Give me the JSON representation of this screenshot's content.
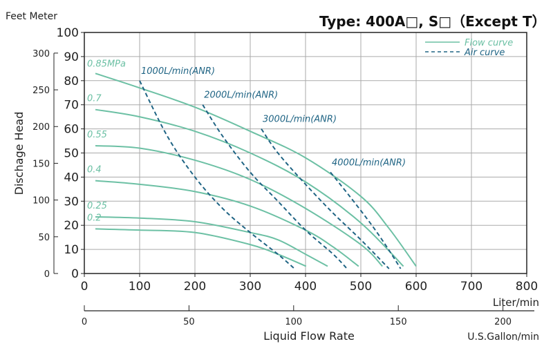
{
  "chart_data": {
    "type": "line",
    "title": "Type: 400A□, S□（Except T）",
    "units_left": "Feet Meter",
    "ylabel": "Dischage Head",
    "xlabel": "Liquid Flow Rate",
    "x_unit": "Liter/min",
    "x2_unit": "U.S.Gallon/min",
    "xlim": [
      0,
      800
    ],
    "ylim": [
      0,
      100
    ],
    "xticks": [
      "0",
      "100",
      "200",
      "300",
      "400",
      "500",
      "600",
      "700",
      "800"
    ],
    "yticks": [
      "0",
      "10",
      "20",
      "30",
      "40",
      "50",
      "60",
      "70",
      "80",
      "90",
      "100"
    ],
    "feet_ticks": [
      "0",
      "50",
      "100",
      "150",
      "200",
      "250",
      "300"
    ],
    "gallon_ticks": [
      "0",
      "50",
      "100",
      "150",
      "200"
    ],
    "grid": true,
    "legend": {
      "position": "top-right",
      "flow": "Flow curve",
      "air": "Air curve"
    },
    "colors": {
      "flow": "#6cc0a4",
      "air": "#1f6484"
    },
    "flow_series": [
      {
        "name": "0.85MPa",
        "points": [
          [
            20,
            83
          ],
          [
            100,
            77
          ],
          [
            200,
            69
          ],
          [
            300,
            59
          ],
          [
            400,
            48
          ],
          [
            500,
            32
          ],
          [
            550,
            19
          ],
          [
            600,
            3
          ]
        ]
      },
      {
        "name": "0.7",
        "points": [
          [
            20,
            68
          ],
          [
            100,
            65
          ],
          [
            200,
            59
          ],
          [
            300,
            50
          ],
          [
            400,
            38
          ],
          [
            500,
            21
          ],
          [
            577,
            3
          ]
        ]
      },
      {
        "name": "0.55",
        "points": [
          [
            20,
            53
          ],
          [
            100,
            52
          ],
          [
            200,
            47
          ],
          [
            300,
            39
          ],
          [
            400,
            27
          ],
          [
            500,
            12
          ],
          [
            539,
            3
          ]
        ]
      },
      {
        "name": "0.4",
        "points": [
          [
            20,
            38.5
          ],
          [
            100,
            37
          ],
          [
            200,
            34
          ],
          [
            300,
            28
          ],
          [
            400,
            18
          ],
          [
            450,
            11
          ],
          [
            496,
            3
          ]
        ]
      },
      {
        "name": "0.25",
        "points": [
          [
            20,
            23.5
          ],
          [
            100,
            23
          ],
          [
            200,
            21.5
          ],
          [
            300,
            17
          ],
          [
            350,
            14
          ],
          [
            400,
            8
          ],
          [
            440,
            3
          ]
        ]
      },
      {
        "name": "0.2",
        "points": [
          [
            20,
            18.5
          ],
          [
            100,
            18
          ],
          [
            200,
            17
          ],
          [
            300,
            12
          ],
          [
            350,
            8
          ],
          [
            401,
            3
          ]
        ]
      }
    ],
    "air_series": [
      {
        "name": "1000L/min(ANR)",
        "points": [
          [
            100,
            80
          ],
          [
            150,
            57
          ],
          [
            200,
            40
          ],
          [
            250,
            27
          ],
          [
            300,
            17
          ],
          [
            350,
            8
          ],
          [
            380,
            2
          ]
        ]
      },
      {
        "name": "2000L/min(ANR)",
        "points": [
          [
            214,
            70
          ],
          [
            250,
            57
          ],
          [
            300,
            42
          ],
          [
            350,
            30
          ],
          [
            400,
            18
          ],
          [
            450,
            8
          ],
          [
            475,
            2
          ]
        ]
      },
      {
        "name": "3000L/min(ANR)",
        "points": [
          [
            320,
            60
          ],
          [
            350,
            50
          ],
          [
            400,
            37
          ],
          [
            450,
            25
          ],
          [
            500,
            14
          ],
          [
            551,
            2
          ]
        ]
      },
      {
        "name": "4000L/min(ANR)",
        "points": [
          [
            445,
            42
          ],
          [
            480,
            32
          ],
          [
            520,
            20
          ],
          [
            550,
            10
          ],
          [
            572,
            2
          ]
        ]
      }
    ]
  }
}
